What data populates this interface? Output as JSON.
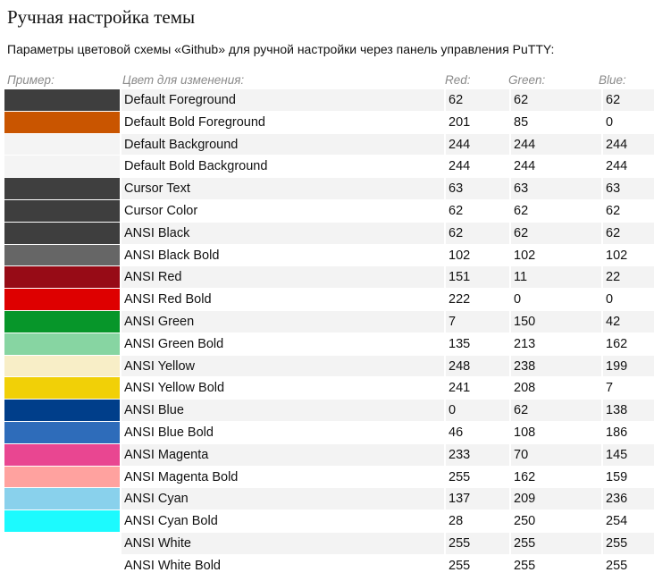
{
  "title": "Ручная настройка темы",
  "intro": "Параметры цветовой схемы «Github» для ручной настройки через панель управления PuTTY:",
  "headers": {
    "example": "Пример:",
    "color": "Цвет для изменения:",
    "red": "Red:",
    "green": "Green:",
    "blue": "Blue:"
  },
  "rows": [
    {
      "name": "Default Foreground",
      "r": "62",
      "g": "62",
      "b": "62",
      "swatch": "#3e3e3e"
    },
    {
      "name": "Default Bold Foreground",
      "r": "201",
      "g": "85",
      "b": "0",
      "swatch": "#c95500"
    },
    {
      "name": "Default Background",
      "r": "244",
      "g": "244",
      "b": "244",
      "swatch": "#f4f4f4"
    },
    {
      "name": "Default Bold Background",
      "r": "244",
      "g": "244",
      "b": "244",
      "swatch": "#f4f4f4"
    },
    {
      "name": "Cursor Text",
      "r": "63",
      "g": "63",
      "b": "63",
      "swatch": "#3f3f3f"
    },
    {
      "name": "Cursor Color",
      "r": "62",
      "g": "62",
      "b": "62",
      "swatch": "#3e3e3e"
    },
    {
      "name": "ANSI Black",
      "r": "62",
      "g": "62",
      "b": "62",
      "swatch": "#3e3e3e"
    },
    {
      "name": "ANSI Black Bold",
      "r": "102",
      "g": "102",
      "b": "102",
      "swatch": "#666666"
    },
    {
      "name": "ANSI Red",
      "r": "151",
      "g": "11",
      "b": "22",
      "swatch": "#970b16"
    },
    {
      "name": "ANSI Red Bold",
      "r": "222",
      "g": "0",
      "b": "0",
      "swatch": "#de0000"
    },
    {
      "name": "ANSI Green",
      "r": "7",
      "g": "150",
      "b": "42",
      "swatch": "#07962a"
    },
    {
      "name": "ANSI Green Bold",
      "r": "135",
      "g": "213",
      "b": "162",
      "swatch": "#87d5a2"
    },
    {
      "name": "ANSI Yellow",
      "r": "248",
      "g": "238",
      "b": "199",
      "swatch": "#f8eec7"
    },
    {
      "name": "ANSI Yellow Bold",
      "r": "241",
      "g": "208",
      "b": "7",
      "swatch": "#f1d007"
    },
    {
      "name": "ANSI Blue",
      "r": "0",
      "g": "62",
      "b": "138",
      "swatch": "#003e8a"
    },
    {
      "name": "ANSI Blue Bold",
      "r": "46",
      "g": "108",
      "b": "186",
      "swatch": "#2e6cba"
    },
    {
      "name": "ANSI Magenta",
      "r": "233",
      "g": "70",
      "b": "145",
      "swatch": "#e94691"
    },
    {
      "name": "ANSI Magenta Bold",
      "r": "255",
      "g": "162",
      "b": "159",
      "swatch": "#ffa29f"
    },
    {
      "name": "ANSI Cyan",
      "r": "137",
      "g": "209",
      "b": "236",
      "swatch": "#89d1ec"
    },
    {
      "name": "ANSI Cyan Bold",
      "r": "28",
      "g": "250",
      "b": "254",
      "swatch": "#1cfafe"
    },
    {
      "name": "ANSI White",
      "r": "255",
      "g": "255",
      "b": "255",
      "swatch": "#ffffff"
    },
    {
      "name": "ANSI White Bold",
      "r": "255",
      "g": "255",
      "b": "255",
      "swatch": "#ffffff"
    }
  ]
}
